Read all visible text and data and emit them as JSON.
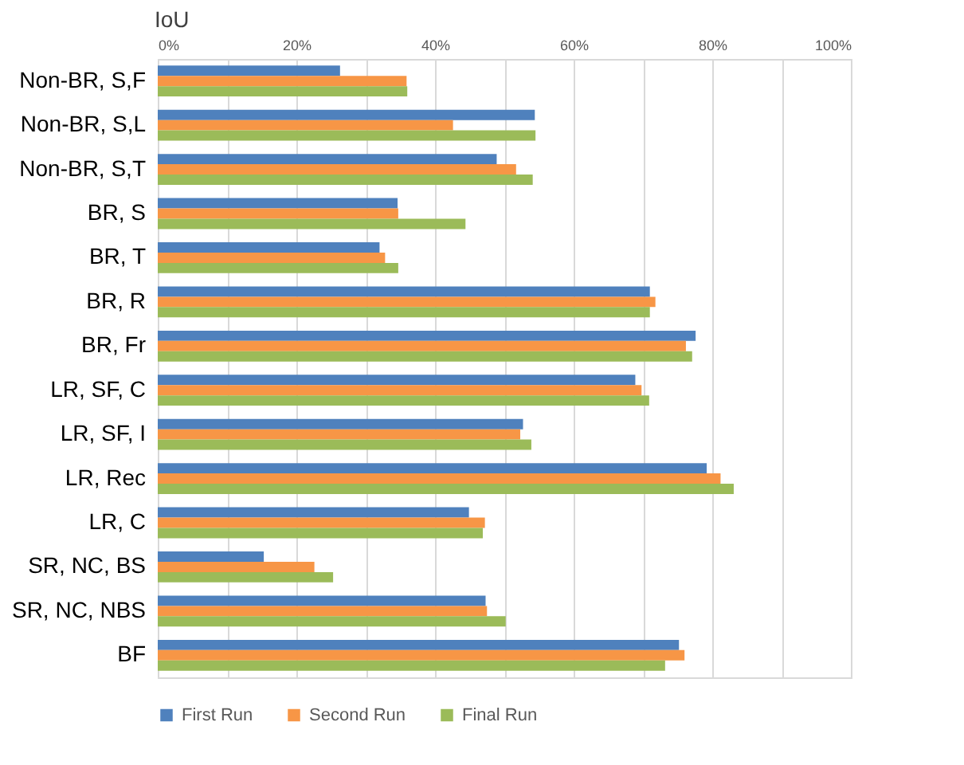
{
  "chart_data": {
    "type": "bar",
    "orientation": "horizontal",
    "title": "IoU",
    "categories": [
      "Non-BR, S,F",
      "Non-BR, S,L",
      "Non-BR, S,T",
      "BR, S",
      "BR, T",
      "BR, R",
      "BR, Fr",
      "LR, SF, C",
      "LR, SF, I",
      "LR, Rec",
      "LR, C",
      "SR, NC, BS",
      "SR, NC, NBS",
      "BF"
    ],
    "series": [
      {
        "name": "First Run",
        "color": "#4f81bd",
        "values": [
          26.3,
          54.4,
          48.9,
          34.6,
          32.0,
          71.0,
          77.6,
          68.9,
          52.7,
          79.2,
          44.9,
          15.3,
          47.3,
          75.2
        ]
      },
      {
        "name": "Second Run",
        "color": "#f79646",
        "values": [
          35.9,
          42.6,
          51.7,
          34.7,
          32.8,
          71.8,
          76.2,
          69.8,
          52.3,
          81.2,
          47.2,
          22.6,
          47.5,
          76.0
        ]
      },
      {
        "name": "Final Run",
        "color": "#9bbb59",
        "values": [
          36.0,
          54.5,
          54.1,
          44.4,
          34.7,
          71.0,
          77.1,
          70.9,
          53.9,
          83.1,
          46.9,
          25.3,
          50.2,
          73.2
        ]
      }
    ],
    "xlim": [
      0,
      100
    ],
    "xticks": [
      {
        "value": 0,
        "label": "0%"
      },
      {
        "value": 10,
        "label": null
      },
      {
        "value": 20,
        "label": "20%"
      },
      {
        "value": 30,
        "label": null
      },
      {
        "value": 40,
        "label": "40%"
      },
      {
        "value": 50,
        "label": null
      },
      {
        "value": 60,
        "label": "60%"
      },
      {
        "value": 70,
        "label": null
      },
      {
        "value": 80,
        "label": "80%"
      },
      {
        "value": 90,
        "label": null
      },
      {
        "value": 100,
        "label": "100%"
      }
    ],
    "grid": "x",
    "legend": "bottom"
  }
}
